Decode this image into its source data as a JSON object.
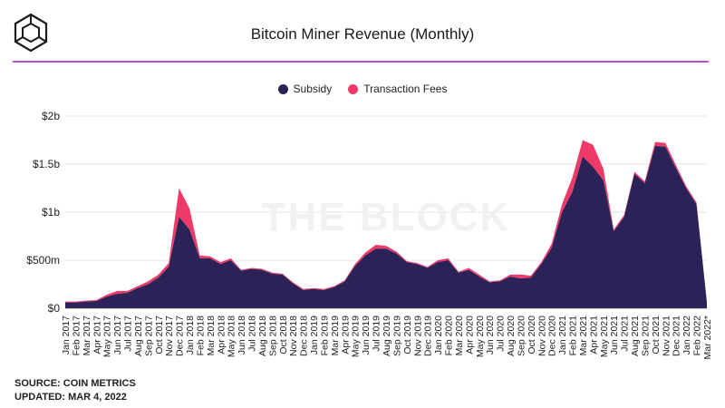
{
  "header": {
    "title": "Bitcoin Miner Revenue (Monthly)",
    "logo_icon": "the-block-cube-logo"
  },
  "watermark": "THE BLOCK",
  "footer": {
    "source": "SOURCE: COIN METRICS",
    "updated": "UPDATED: MAR 4, 2022"
  },
  "colors": {
    "subsidy": "#2b2358",
    "fees": "#ee3a67",
    "accent_rule": "#b84fd1"
  },
  "chart_data": {
    "type": "area",
    "stacked": true,
    "title": "Bitcoin Miner Revenue (Monthly)",
    "y_ticks": [
      "$0",
      "$500m",
      "$1b",
      "$1.5b",
      "$2b"
    ],
    "ylim": [
      0,
      2000
    ],
    "y_unit": "millions USD",
    "grid": true,
    "legend_position": "top-center",
    "categories": [
      "Jan 2017",
      "Feb 2017",
      "Mar 2017",
      "Apr 2017",
      "May 2017",
      "Jun 2017",
      "Jul 2017",
      "Aug 2017",
      "Sep 2017",
      "Oct 2017",
      "Nov 2017",
      "Dec 2017",
      "Jan 2018",
      "Feb 2018",
      "Mar 2018",
      "Apr 2018",
      "May 2018",
      "Jun 2018",
      "Jul 2018",
      "Aug 2018",
      "Sep 2018",
      "Oct 2018",
      "Nov 2018",
      "Dec 2018",
      "Jan 2019",
      "Feb 2019",
      "Mar 2019",
      "Apr 2019",
      "May 2019",
      "Jun 2019",
      "Jul 2019",
      "Aug 2019",
      "Sep 2019",
      "Oct 2019",
      "Nov 2019",
      "Dec 2019",
      "Jan 2020",
      "Feb 2020",
      "Mar 2020",
      "Apr 2020",
      "May 2020",
      "Jun 2020",
      "Jul 2020",
      "Aug 2020",
      "Sep 2020",
      "Oct 2020",
      "Nov 2020",
      "Dec 2020",
      "Jan 2021",
      "Feb 2021",
      "Mar 2021",
      "Apr 2021",
      "May 2021",
      "Jun 2021",
      "Jul 2021",
      "Aug 2021",
      "Sep 2021",
      "Oct 2021",
      "Nov 2021",
      "Dec 2021",
      "Jan 2022",
      "Feb 2022",
      "Mar 2022*"
    ],
    "series": [
      {
        "name": "Subsidy",
        "color": "#2b2358",
        "values": [
          60,
          60,
          70,
          75,
          120,
          150,
          160,
          210,
          250,
          320,
          430,
          950,
          820,
          520,
          520,
          460,
          500,
          390,
          410,
          400,
          360,
          350,
          260,
          190,
          200,
          190,
          220,
          280,
          440,
          550,
          620,
          620,
          570,
          480,
          460,
          420,
          480,
          500,
          370,
          400,
          330,
          270,
          280,
          330,
          310,
          320,
          460,
          630,
          1000,
          1210,
          1580,
          1470,
          1330,
          800,
          950,
          1400,
          1300,
          1690,
          1680,
          1460,
          1250,
          1080,
          60
        ]
      },
      {
        "name": "Transaction Fees",
        "color": "#ee3a67",
        "values": [
          10,
          10,
          10,
          10,
          20,
          30,
          20,
          20,
          30,
          30,
          40,
          300,
          220,
          30,
          20,
          20,
          20,
          10,
          10,
          10,
          10,
          10,
          10,
          10,
          10,
          10,
          10,
          10,
          20,
          30,
          40,
          30,
          20,
          10,
          10,
          10,
          20,
          20,
          10,
          20,
          20,
          10,
          10,
          20,
          40,
          20,
          20,
          40,
          80,
          150,
          170,
          230,
          120,
          20,
          20,
          20,
          20,
          40,
          40,
          30,
          20,
          20,
          5
        ]
      }
    ]
  }
}
